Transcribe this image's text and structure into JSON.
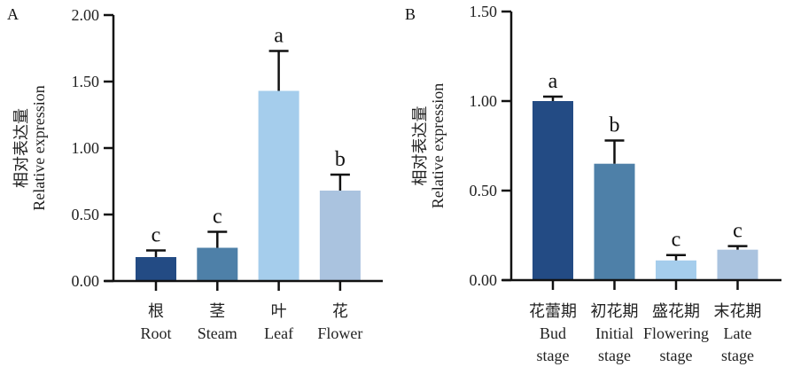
{
  "chart_data": [
    {
      "type": "bar",
      "panel_label": "A",
      "ylabel_cn": "相对表达量",
      "ylabel": "Relative expression",
      "ylim": [
        0,
        2.0
      ],
      "yticks": [
        "0.00",
        "0.50",
        "1.00",
        "1.50",
        "2.00"
      ],
      "ytick_values": [
        0,
        0.5,
        1.0,
        1.5,
        2.0
      ],
      "categories": [
        {
          "cn": "根",
          "en": [
            "Root"
          ]
        },
        {
          "cn": "茎",
          "en": [
            "Steam"
          ]
        },
        {
          "cn": "叶",
          "en": [
            "Leaf"
          ]
        },
        {
          "cn": "花",
          "en": [
            "Flower"
          ]
        }
      ],
      "values": [
        0.18,
        0.25,
        1.43,
        0.68
      ],
      "error_upper": [
        0.05,
        0.12,
        0.3,
        0.12
      ],
      "significance": [
        "c",
        "c",
        "a",
        "b"
      ],
      "colors": [
        "#234b84",
        "#4e80a8",
        "#a5cdec",
        "#aac3df"
      ]
    },
    {
      "type": "bar",
      "panel_label": "B",
      "ylabel_cn": "相对表达量",
      "ylabel": "Relative expression",
      "ylim": [
        0,
        1.5
      ],
      "yticks": [
        "0.00",
        "0.50",
        "1.00",
        "1.50"
      ],
      "ytick_values": [
        0,
        0.5,
        1.0,
        1.5
      ],
      "categories": [
        {
          "cn": "花蕾期",
          "en": [
            "Bud",
            "stage"
          ]
        },
        {
          "cn": "初花期",
          "en": [
            "Initial",
            "stage"
          ]
        },
        {
          "cn": "盛花期",
          "en": [
            "Flowering",
            "stage"
          ]
        },
        {
          "cn": "末花期",
          "en": [
            "Late",
            "stage"
          ]
        }
      ],
      "values": [
        1.0,
        0.65,
        0.11,
        0.17
      ],
      "error_upper": [
        0.025,
        0.13,
        0.03,
        0.02
      ],
      "significance": [
        "a",
        "b",
        "c",
        "c"
      ],
      "colors": [
        "#234b84",
        "#4e80a8",
        "#a5cdec",
        "#aac3df"
      ]
    }
  ]
}
